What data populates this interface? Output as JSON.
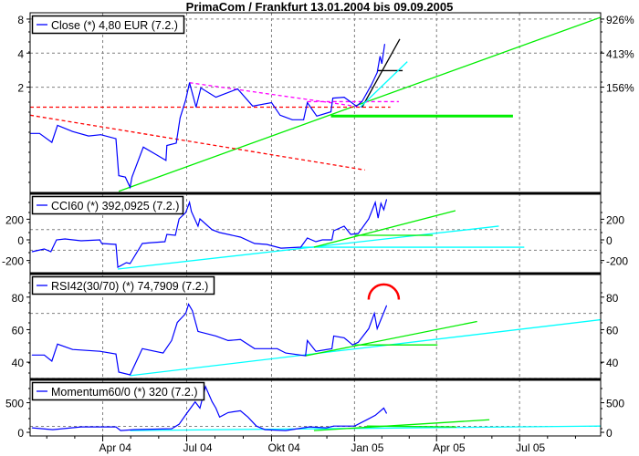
{
  "title": "PrimaCom / Frankfurt 13.01.2004 bis 09.09.2005",
  "colors": {
    "series": "#0000ff",
    "green": "#00ee00",
    "cyan": "#00ffff",
    "red": "#ff0000",
    "magenta": "#ff00ff",
    "black": "#000000",
    "grid": "#808080"
  },
  "chart_data": {
    "type": "line",
    "x_unit": "days since 13.01.2004",
    "xlim": [
      0,
      605
    ],
    "x_ticks": [
      {
        "day": 77,
        "label": "Apr 04"
      },
      {
        "day": 166,
        "label": "Jul 04"
      },
      {
        "day": 256,
        "label": "Okt 04"
      },
      {
        "day": 344,
        "label": "Jan 05"
      },
      {
        "day": 431,
        "label": "Apr 05"
      },
      {
        "day": 519,
        "label": "Jul 05"
      }
    ],
    "panels": [
      {
        "id": "price",
        "legend": "Close (*) 4,80 EUR (7.2.)",
        "scale": "log",
        "ylim": [
          0.23,
          9.1
        ],
        "left_ticks": [
          {
            "v": 8,
            "label": "8"
          },
          {
            "v": 4,
            "label": "4"
          },
          {
            "v": 2,
            "label": "2"
          }
        ],
        "right_ticks": [
          {
            "v": 8,
            "label": "926%"
          },
          {
            "v": 4,
            "label": "413%"
          },
          {
            "v": 2,
            "label": "156%"
          }
        ],
        "grid_y": [
          8,
          4,
          2
        ],
        "series": [
          [
            0,
            0.78
          ],
          [
            10,
            0.78
          ],
          [
            23,
            0.65
          ],
          [
            29,
            0.92
          ],
          [
            45,
            0.81
          ],
          [
            62,
            0.74
          ],
          [
            75,
            0.76
          ],
          [
            91,
            0.7
          ],
          [
            94,
            0.33
          ],
          [
            101,
            0.32
          ],
          [
            106,
            0.26
          ],
          [
            108,
            0.32
          ],
          [
            120,
            0.59
          ],
          [
            133,
            0.51
          ],
          [
            144,
            0.45
          ],
          [
            145,
            0.61
          ],
          [
            155,
            0.64
          ],
          [
            159,
            1.07
          ],
          [
            165,
            1.55
          ],
          [
            169,
            2.19
          ],
          [
            176,
            1.33
          ],
          [
            181,
            1.97
          ],
          [
            197,
            1.63
          ],
          [
            220,
            1.93
          ],
          [
            236,
            1.36
          ],
          [
            256,
            1.46
          ],
          [
            265,
            1.13
          ],
          [
            278,
            1.03
          ],
          [
            290,
            1.03
          ],
          [
            294,
            1.46
          ],
          [
            304,
            1.11
          ],
          [
            319,
            1.21
          ],
          [
            321,
            1.6
          ],
          [
            333,
            1.63
          ],
          [
            346,
            1.36
          ],
          [
            352,
            1.49
          ],
          [
            362,
            2.11
          ],
          [
            368,
            2.69
          ],
          [
            371,
            3.75
          ],
          [
            373,
            3.23
          ],
          [
            376,
            4.8
          ]
        ],
        "lines": [
          {
            "color": "green",
            "from": [
              94,
              0.24
            ],
            "to": [
              605,
              8.3
            ]
          },
          {
            "color": "green",
            "from": [
              319,
              1.11
            ],
            "to": [
              512,
              1.11
            ],
            "width": 3
          },
          {
            "color": "red",
            "dash": true,
            "from": [
              0,
              1.33
            ],
            "to": [
              382,
              1.33
            ]
          },
          {
            "color": "red",
            "dash": true,
            "from": [
              0,
              1.13
            ],
            "to": [
              355,
              0.37
            ]
          },
          {
            "color": "magenta",
            "dash": true,
            "from": [
              169,
              2.19
            ],
            "to": [
              352,
              1.33
            ]
          },
          {
            "color": "magenta",
            "dash": true,
            "from": [
              294,
              1.49
            ],
            "to": [
              391,
              1.49
            ]
          },
          {
            "color": "black",
            "from": [
              352,
              1.33
            ],
            "to": [
              392,
              5.33
            ]
          },
          {
            "color": "black",
            "from": [
              368,
              2.8
            ],
            "to": [
              395,
              2.8
            ]
          },
          {
            "color": "cyan",
            "from": [
              350,
              1.33
            ],
            "to": [
              400,
              3.36
            ]
          }
        ]
      },
      {
        "id": "cci",
        "legend": "CCI60 (*) 392,0925 (7.2.)",
        "scale": "linear",
        "ylim": [
          -327,
          442
        ],
        "left_ticks": [
          {
            "v": 200,
            "label": "200"
          },
          {
            "v": 0,
            "label": "0"
          },
          {
            "v": -200,
            "label": "-200"
          }
        ],
        "right_ticks": [
          {
            "v": 200,
            "label": "200"
          },
          {
            "v": 0,
            "label": "0"
          },
          {
            "v": -200,
            "label": "-200"
          }
        ],
        "grid_y": [
          100,
          -100
        ],
        "series": [
          [
            2,
            -115
          ],
          [
            15,
            -88
          ],
          [
            22,
            -115
          ],
          [
            28,
            0
          ],
          [
            37,
            9
          ],
          [
            54,
            -9
          ],
          [
            74,
            0
          ],
          [
            76,
            -35
          ],
          [
            91,
            -44
          ],
          [
            93,
            -265
          ],
          [
            102,
            -221
          ],
          [
            106,
            -230
          ],
          [
            119,
            -35
          ],
          [
            128,
            -27
          ],
          [
            143,
            -18
          ],
          [
            145,
            53
          ],
          [
            154,
            44
          ],
          [
            158,
            203
          ],
          [
            165,
            265
          ],
          [
            169,
            363
          ],
          [
            171,
            274
          ],
          [
            178,
            133
          ],
          [
            180,
            203
          ],
          [
            193,
            97
          ],
          [
            201,
            71
          ],
          [
            223,
            27
          ],
          [
            238,
            -35
          ],
          [
            251,
            -44
          ],
          [
            266,
            -80
          ],
          [
            287,
            -71
          ],
          [
            294,
            18
          ],
          [
            303,
            -18
          ],
          [
            310,
            0
          ],
          [
            320,
            0
          ],
          [
            322,
            88
          ],
          [
            333,
            133
          ],
          [
            340,
            53
          ],
          [
            348,
            62
          ],
          [
            359,
            203
          ],
          [
            366,
            363
          ],
          [
            369,
            212
          ],
          [
            372,
            354
          ],
          [
            375,
            292
          ],
          [
            378,
            392
          ]
        ],
        "lines": [
          {
            "color": "cyan",
            "from": [
              93,
              -283
            ],
            "to": [
              497,
              133
            ]
          },
          {
            "color": "cyan",
            "from": [
              287,
              -71
            ],
            "to": [
              524,
              -71
            ]
          },
          {
            "color": "green",
            "from": [
              301,
              -71
            ],
            "to": [
              451,
              283
            ]
          },
          {
            "color": "green",
            "from": [
              344,
              44
            ],
            "to": [
              427,
              44
            ]
          }
        ]
      },
      {
        "id": "rsi",
        "legend": "RSI42(30/70) (*) 74,7909 (7.2.)",
        "scale": "linear",
        "ylim": [
          29.4,
          93.9
        ],
        "left_ticks": [
          {
            "v": 80,
            "label": "80"
          },
          {
            "v": 60,
            "label": "60"
          },
          {
            "v": 40,
            "label": "40"
          }
        ],
        "right_ticks": [
          {
            "v": 80,
            "label": "80"
          },
          {
            "v": 60,
            "label": "60"
          },
          {
            "v": 40,
            "label": "40"
          }
        ],
        "grid_y": [
          70,
          30
        ],
        "series": [
          [
            2,
            44.4
          ],
          [
            15,
            44.4
          ],
          [
            23,
            40.6
          ],
          [
            29,
            51.1
          ],
          [
            45,
            47.8
          ],
          [
            74,
            46.7
          ],
          [
            91,
            45
          ],
          [
            94,
            33.9
          ],
          [
            106,
            32.2
          ],
          [
            119,
            48.3
          ],
          [
            141,
            45.6
          ],
          [
            150,
            53.3
          ],
          [
            156,
            64.4
          ],
          [
            165,
            70
          ],
          [
            168,
            75.6
          ],
          [
            172,
            71.7
          ],
          [
            178,
            58.9
          ],
          [
            197,
            56.1
          ],
          [
            210,
            53.3
          ],
          [
            223,
            53.9
          ],
          [
            238,
            48.3
          ],
          [
            262,
            48.3
          ],
          [
            271,
            45.6
          ],
          [
            292,
            43.9
          ],
          [
            294,
            53.3
          ],
          [
            303,
            46.7
          ],
          [
            320,
            48.3
          ],
          [
            322,
            56.1
          ],
          [
            333,
            55
          ],
          [
            342,
            50.6
          ],
          [
            348,
            52.2
          ],
          [
            359,
            60.6
          ],
          [
            365,
            70
          ],
          [
            368,
            60.6
          ],
          [
            378,
            74.79
          ]
        ],
        "arc": {
          "color": "red",
          "center": [
            375,
            78.5
          ],
          "radius_days": 16
        },
        "lines": [
          {
            "color": "cyan",
            "from": [
              106,
              31.7
            ],
            "to": [
              605,
              66.1
            ]
          },
          {
            "color": "green",
            "from": [
              292,
              43.9
            ],
            "to": [
              474,
              65
            ]
          },
          {
            "color": "green",
            "from": [
              344,
              50.6
            ],
            "to": [
              432,
              50.6
            ]
          }
        ]
      },
      {
        "id": "momentum",
        "legend": "Momentum60/0 (*) 320 (7.2.)",
        "scale": "linear",
        "ylim": [
          -61,
          879
        ],
        "left_ticks": [
          {
            "v": 500,
            "label": "500"
          },
          {
            "v": 0,
            "label": "0"
          }
        ],
        "right_ticks": [
          {
            "v": 500,
            "label": "500"
          },
          {
            "v": 0,
            "label": "0"
          }
        ],
        "grid_y": [
          100
        ],
        "series": [
          [
            2,
            76
          ],
          [
            24,
            45
          ],
          [
            54,
            91
          ],
          [
            91,
            91
          ],
          [
            96,
            30
          ],
          [
            110,
            45
          ],
          [
            150,
            61
          ],
          [
            158,
            136
          ],
          [
            166,
            318
          ],
          [
            175,
            515
          ],
          [
            180,
            409
          ],
          [
            186,
            773
          ],
          [
            193,
            515
          ],
          [
            197,
            409
          ],
          [
            201,
            258
          ],
          [
            210,
            333
          ],
          [
            223,
            364
          ],
          [
            231,
            258
          ],
          [
            240,
            106
          ],
          [
            249,
            45
          ],
          [
            271,
            30
          ],
          [
            296,
            91
          ],
          [
            314,
            76
          ],
          [
            322,
            106
          ],
          [
            344,
            106
          ],
          [
            357,
            212
          ],
          [
            366,
            288
          ],
          [
            375,
            409
          ],
          [
            378,
            320
          ]
        ],
        "lines": [
          {
            "color": "cyan",
            "from": [
              106,
              30
            ],
            "to": [
              605,
              106
            ]
          },
          {
            "color": "green",
            "from": [
              301,
              30
            ],
            "to": [
              487,
              212
            ]
          },
          {
            "color": "green",
            "from": [
              357,
              106
            ],
            "to": [
              452,
              91
            ]
          }
        ]
      }
    ]
  }
}
